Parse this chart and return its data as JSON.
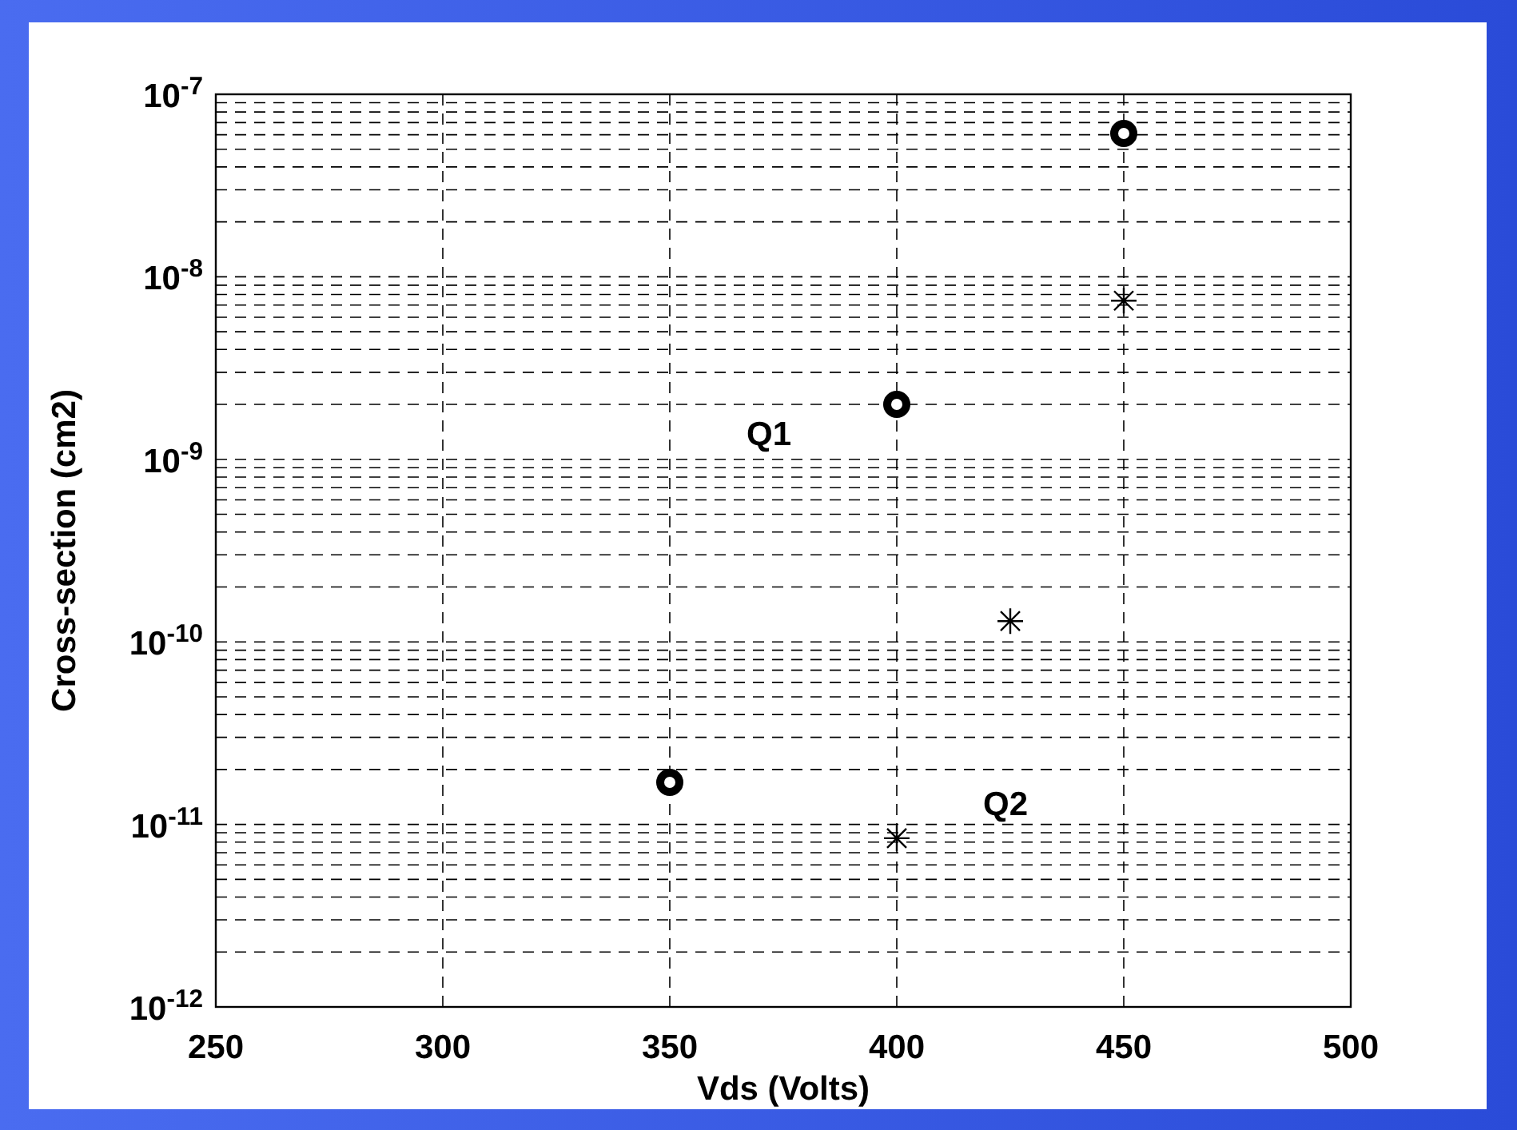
{
  "chart_data": {
    "type": "scatter",
    "xlabel": "Vds (Volts)",
    "ylabel": "Cross-section (cm2)",
    "xlim": [
      250,
      500
    ],
    "xticks": [
      250,
      300,
      350,
      400,
      450,
      500
    ],
    "ylim": [
      1e-12,
      1e-07
    ],
    "yticks": [
      {
        "value": 1e-12,
        "label": "10$^{-12}$"
      },
      {
        "value": 1e-11,
        "label": "10$^{-11}$"
      },
      {
        "value": 1e-10,
        "label": "10$^{-10}$"
      },
      {
        "value": 1e-09,
        "label": "10$^{-9}$"
      },
      {
        "value": 1e-08,
        "label": "10$^{-8}$"
      },
      {
        "value": 1e-07,
        "label": "10$^{-7}$"
      }
    ],
    "log": "y",
    "grid": true,
    "series": [
      {
        "name": "Q1",
        "color": "#000000",
        "marker": "circle",
        "x": [
          350,
          400,
          450
        ],
        "values": [
          1.7e-11,
          2e-09,
          6.1e-08
        ]
      },
      {
        "name": "Q2",
        "color": "#000000",
        "marker": "cross",
        "x": [
          400,
          425,
          450
        ],
        "values": [
          8.4e-12,
          1.3e-10,
          7.4e-09
        ]
      }
    ]
  }
}
